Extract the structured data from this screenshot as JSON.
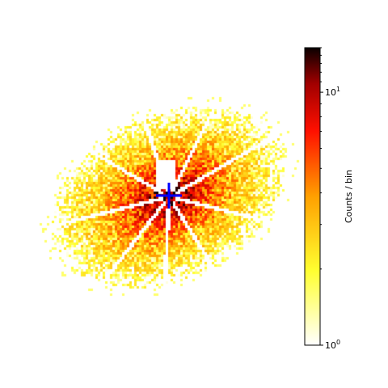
{
  "chart_data": {
    "type": "heatmap",
    "title": "",
    "xlabel": "",
    "ylabel": "",
    "colormap": "hot_r",
    "color_scale": "log",
    "color_range": [
      1,
      15
    ],
    "colorbar": {
      "label": "Counts / bin",
      "ticks": [
        {
          "value": 1,
          "base": "10",
          "exponent": "0"
        },
        {
          "value": 10,
          "base": "10",
          "exponent": "1"
        }
      ]
    },
    "distribution": {
      "shape": "elliptical blob rotated about -25°",
      "center_marker": {
        "symbol": "+",
        "color": "#0000ff"
      },
      "beam_center_value": 15,
      "radial_gaps": 9,
      "shadowed_region": "upper central wedge"
    }
  }
}
